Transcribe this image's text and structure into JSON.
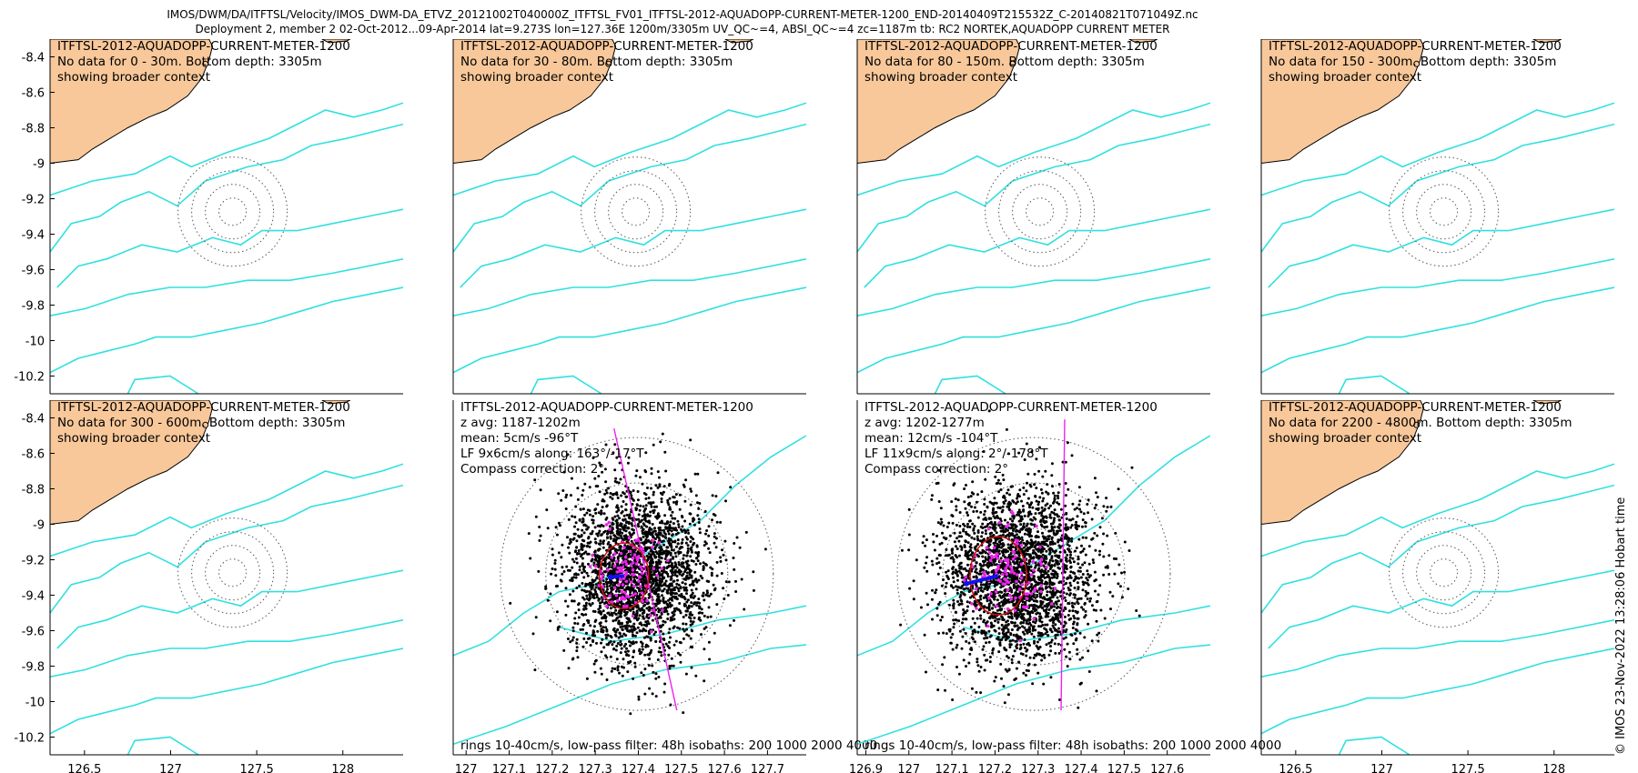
{
  "header": {
    "title_line1": "IMOS/DWM/DA/ITFTSL/Velocity/IMOS_DWM-DA_ETVZ_20121002T040000Z_ITFTSL_FV01_ITFTSL-2012-AQUADOPP-CURRENT-METER-1200_END-20140409T215532Z_C-20140821T071049Z.nc",
    "title_line2": "Deployment 2, member 2 02-Oct-2012...09-Apr-2014 lat=9.273S lon=127.36E 1200m/3305m UV_QC~=4, ABSI_QC~=4 zc=1187m tb: RC2 NORTEK,AQUADOPP CURRENT METER"
  },
  "credit": "© IMOS 23-Nov-2022 13:28:06 Hobart time",
  "colors": {
    "land": "#f8c89a",
    "isobath": "#30e0e0",
    "ring": "#555555",
    "scatter": "#000000",
    "lowpass": "#ee22ee",
    "ellipse": "#cc1111",
    "mean": "#1111ee"
  },
  "chart_data": [
    {
      "type": "scatter",
      "instrument": "ITFTSL-2012-AQUADOPP-CURRENT-METER-1200",
      "lines": [
        "ITFTSL-2012-AQUADOPP-CURRENT-METER-1200",
        "No data for 0 - 30m. Bottom depth: 3305m",
        "showing broader context"
      ],
      "footer": "",
      "xlim": [
        126.3,
        128.35
      ],
      "ylim": [
        -10.3,
        -8.3
      ],
      "xticks": [
        126.5,
        127,
        127.5,
        128
      ],
      "yticks": [
        -8.4,
        -8.6,
        -8.8,
        -9,
        -9.2,
        -9.4,
        -9.6,
        -9.8,
        -10,
        -10.2
      ],
      "show_xticks": false,
      "show_yticks": true,
      "data": false
    },
    {
      "type": "scatter",
      "instrument": "ITFTSL-2012-AQUADOPP-CURRENT-METER-1200",
      "lines": [
        "ITFTSL-2012-AQUADOPP-CURRENT-METER-1200",
        "No data for 30 - 80m. Bottom depth: 3305m",
        "showing broader context"
      ],
      "footer": "",
      "xlim": [
        126.3,
        128.35
      ],
      "ylim": [
        -10.3,
        -8.3
      ],
      "xticks": [],
      "yticks": [],
      "show_xticks": false,
      "show_yticks": false,
      "data": false
    },
    {
      "type": "scatter",
      "instrument": "ITFTSL-2012-AQUADOPP-CURRENT-METER-1200",
      "lines": [
        "ITFTSL-2012-AQUADOPP-CURRENT-METER-1200",
        "No data for 80 - 150m. Bottom depth: 3305m",
        "showing broader context"
      ],
      "footer": "",
      "xlim": [
        126.3,
        128.35
      ],
      "ylim": [
        -10.3,
        -8.3
      ],
      "xticks": [],
      "yticks": [],
      "show_xticks": false,
      "show_yticks": false,
      "data": false
    },
    {
      "type": "scatter",
      "instrument": "ITFTSL-2012-AQUADOPP-CURRENT-METER-1200",
      "lines": [
        "ITFTSL-2012-AQUADOPP-CURRENT-METER-1200",
        "No data for 150 - 300m. Bottom depth: 3305m",
        "showing broader context"
      ],
      "footer": "",
      "xlim": [
        126.3,
        128.35
      ],
      "ylim": [
        -10.3,
        -8.3
      ],
      "xticks": [],
      "yticks": [],
      "show_xticks": false,
      "show_yticks": false,
      "data": false
    },
    {
      "type": "scatter",
      "instrument": "ITFTSL-2012-AQUADOPP-CURRENT-METER-1200",
      "lines": [
        "ITFTSL-2012-AQUADOPP-CURRENT-METER-1200",
        "No data for 300 - 600m. Bottom depth: 3305m",
        "showing broader context"
      ],
      "footer": "",
      "xlim": [
        126.3,
        128.35
      ],
      "ylim": [
        -10.3,
        -8.3
      ],
      "xticks": [
        126.5,
        127,
        127.5,
        128
      ],
      "yticks": [
        -8.4,
        -8.6,
        -8.8,
        -9,
        -9.2,
        -9.4,
        -9.6,
        -9.8,
        -10,
        -10.2
      ],
      "show_xticks": true,
      "show_yticks": true,
      "data": false
    },
    {
      "type": "scatter",
      "instrument": "ITFTSL-2012-AQUADOPP-CURRENT-METER-1200",
      "lines": [
        "ITFTSL-2012-AQUADOPP-CURRENT-METER-1200",
        "z avg: 1187-1202m",
        "mean: 5cm/s -96°T",
        "LF 9x6cm/s along: 163°/-17°T",
        "Compass correction: 2°"
      ],
      "footer": "rings 10-40cm/s, low-pass filter: 48h isobaths: 200 1000 2000 4000",
      "xlim": [
        126.97,
        127.79
      ],
      "ylim": [
        -10.3,
        -8.3
      ],
      "xticks": [
        127,
        127.1,
        127.2,
        127.3,
        127.4,
        127.5,
        127.6,
        127.7
      ],
      "yticks": [],
      "show_xticks": true,
      "show_yticks": false,
      "data": true,
      "mean_speed_cms": 5,
      "mean_dir_degT": -96,
      "lf_major_cms": 9,
      "lf_minor_cms": 6,
      "lf_along_deg": 163
    },
    {
      "type": "scatter",
      "instrument": "ITFTSL-2012-AQUADOPP-CURRENT-METER-1200",
      "lines": [
        "ITFTSL-2012-AQUADOPP-CURRENT-METER-1200",
        "z avg: 1202-1277m",
        "mean: 12cm/s -104°T",
        "LF 11x9cm/s along: 2°/-178°T",
        "Compass correction: 2°"
      ],
      "footer": "rings 10-40cm/s, low-pass filter: 48h isobaths: 200 1000 2000 4000",
      "xlim": [
        126.88,
        127.7
      ],
      "ylim": [
        -10.3,
        -8.3
      ],
      "xticks": [
        126.9,
        127,
        127.1,
        127.2,
        127.3,
        127.4,
        127.5,
        127.6
      ],
      "yticks": [],
      "show_xticks": true,
      "show_yticks": false,
      "data": true,
      "mean_speed_cms": 12,
      "mean_dir_degT": -104,
      "lf_major_cms": 11,
      "lf_minor_cms": 9,
      "lf_along_deg": 2
    },
    {
      "type": "scatter",
      "instrument": "ITFTSL-2012-AQUADOPP-CURRENT-METER-1200",
      "lines": [
        "ITFTSL-2012-AQUADOPP-CURRENT-METER-1200",
        "No data for 2200 - 4800m. Bottom depth: 3305m",
        "showing broader context"
      ],
      "footer": "",
      "xlim": [
        126.3,
        128.35
      ],
      "ylim": [
        -10.3,
        -8.3
      ],
      "xticks": [
        126.5,
        127,
        127.5,
        128
      ],
      "yticks": [],
      "show_xticks": true,
      "show_yticks": false,
      "data": false
    }
  ]
}
